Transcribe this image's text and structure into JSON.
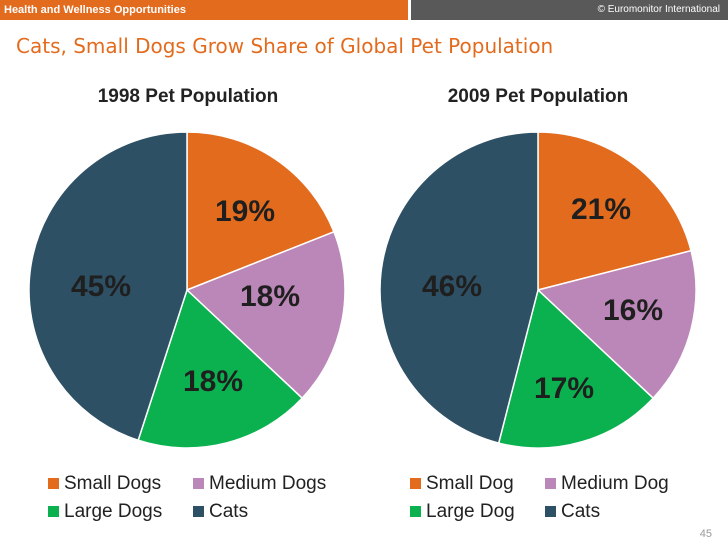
{
  "header": {
    "section_label": "Health and Wellness Opportunities",
    "copyright": "© Euromonitor International"
  },
  "slide": {
    "title": "Cats, Small Dogs Grow Share of Global Pet Population",
    "page_number": "45"
  },
  "colors": {
    "accent": "#e36b1e",
    "header_dark": "#595959",
    "title_text": "#e36b1e",
    "label_text": "#1f1f1f"
  },
  "chart_data": [
    {
      "type": "pie",
      "title": "1998 Pet Population",
      "categories": [
        "Small Dogs",
        "Medium Dogs",
        "Large Dogs",
        "Cats"
      ],
      "values": [
        19,
        18,
        18,
        45
      ],
      "labels": [
        "19%",
        "18%",
        "18%",
        "45%"
      ],
      "colors": [
        "#e36b1e",
        "#bb86b8",
        "#0cb14f",
        "#2e5065"
      ],
      "legend_placement": "bottom"
    },
    {
      "type": "pie",
      "title": "2009 Pet Population",
      "categories": [
        "Small Dog",
        "Medium Dog",
        "Large Dog",
        "Cats"
      ],
      "values": [
        21,
        16,
        17,
        46
      ],
      "labels": [
        "21%",
        "16%",
        "17%",
        "46%"
      ],
      "colors": [
        "#e36b1e",
        "#bb86b8",
        "#0cb14f",
        "#2e5065"
      ],
      "legend_placement": "bottom"
    }
  ]
}
